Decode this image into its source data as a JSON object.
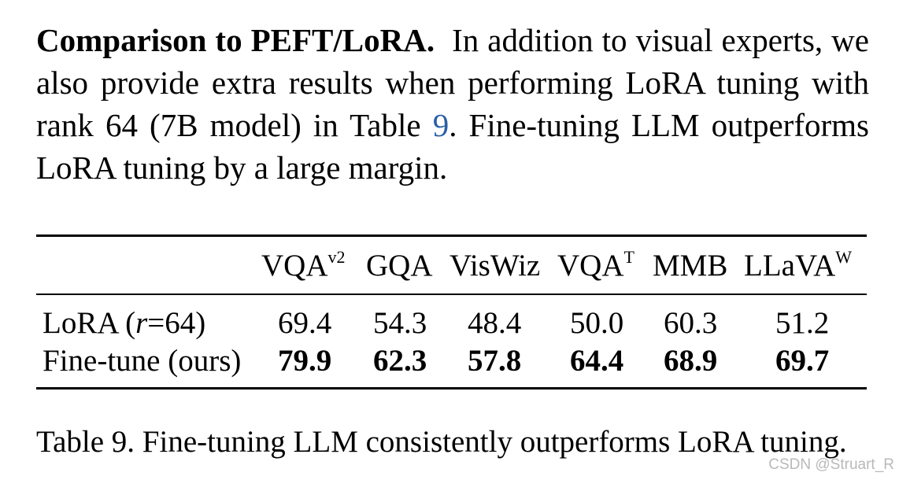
{
  "paragraph": {
    "heading": "Comparison to PEFT/LoRA.",
    "text_before_ref": "In addition to visual experts, we also provide extra results when performing LoRA tuning with rank 64 (7B model) in Table ",
    "ref": "9",
    "text_after_ref": ". Fine-tuning LLM outperforms LoRA tuning by a large margin."
  },
  "table": {
    "columns": [
      {
        "base": "VQA",
        "sup": "v2"
      },
      {
        "base": "GQA",
        "sup": ""
      },
      {
        "base": "VisWiz",
        "sup": ""
      },
      {
        "base": "VQA",
        "sup": "T"
      },
      {
        "base": "MMB",
        "sup": ""
      },
      {
        "base": "LLaVA",
        "sup": "W"
      }
    ],
    "rows": [
      {
        "label_prefix": "LoRA (",
        "label_var": "r",
        "label_suffix": "=64)",
        "values": [
          "69.4",
          "54.3",
          "48.4",
          "50.0",
          "60.3",
          "51.2"
        ]
      },
      {
        "label": "Fine-tune (ours)",
        "values": [
          "79.9",
          "62.3",
          "57.8",
          "64.4",
          "68.9",
          "69.7"
        ]
      }
    ]
  },
  "caption": "Table 9. Fine-tuning LLM consistently outperforms LoRA tuning.",
  "watermark": "CSDN @Struart_R"
}
